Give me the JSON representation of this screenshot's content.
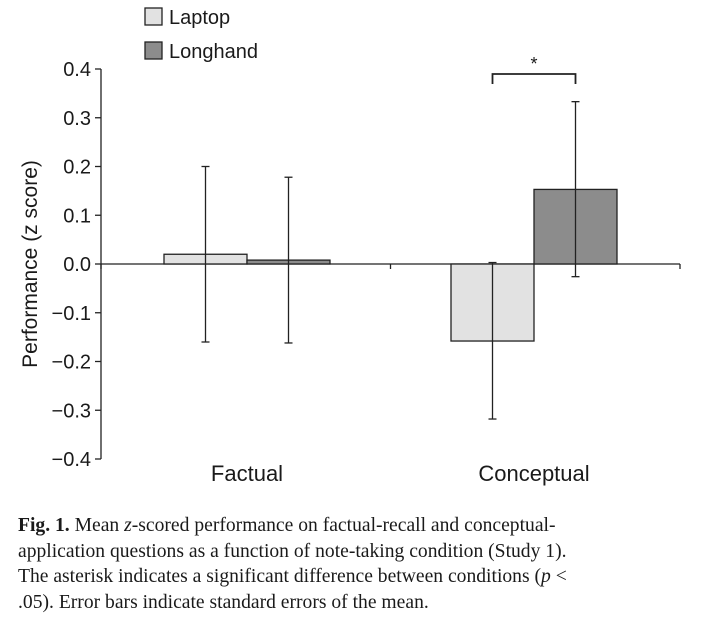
{
  "chart_data": {
    "type": "bar",
    "categories": [
      "Factual",
      "Conceptual"
    ],
    "series": [
      {
        "name": "Laptop",
        "color": "#e2e2e2",
        "values": [
          0.02,
          -0.158
        ],
        "error_low": [
          -0.16,
          -0.318
        ],
        "error_high": [
          0.2,
          0.003
        ]
      },
      {
        "name": "Longhand",
        "color": "#8c8c8c",
        "values": [
          0.008,
          0.153
        ],
        "error_low": [
          -0.162,
          -0.026
        ],
        "error_high": [
          0.178,
          0.333
        ]
      }
    ],
    "ylabel": "Performance (z score)",
    "xlabel": "",
    "ylim": [
      -0.4,
      0.4
    ],
    "yticks": [
      "0.4",
      "0.3",
      "0.2",
      "0.1",
      "0.0",
      "−0.1",
      "−0.2",
      "−0.3",
      "−0.4"
    ],
    "legend_position": "top-left",
    "grid": false,
    "significance": {
      "category": "Conceptual",
      "label": "*"
    }
  },
  "caption": {
    "label": "Fig. 1.",
    "line1_pre": "Mean ",
    "line1_z": "z",
    "line1_post": "-scored performance on factual-recall and conceptual-",
    "line2": "application questions as a function of note-taking condition (Study 1).",
    "line3_pre": "The asterisk indicates a significant difference between conditions (",
    "line3_p": "p",
    "line3_post": " <",
    "line4": ".05). Error bars indicate standard errors of the mean."
  }
}
